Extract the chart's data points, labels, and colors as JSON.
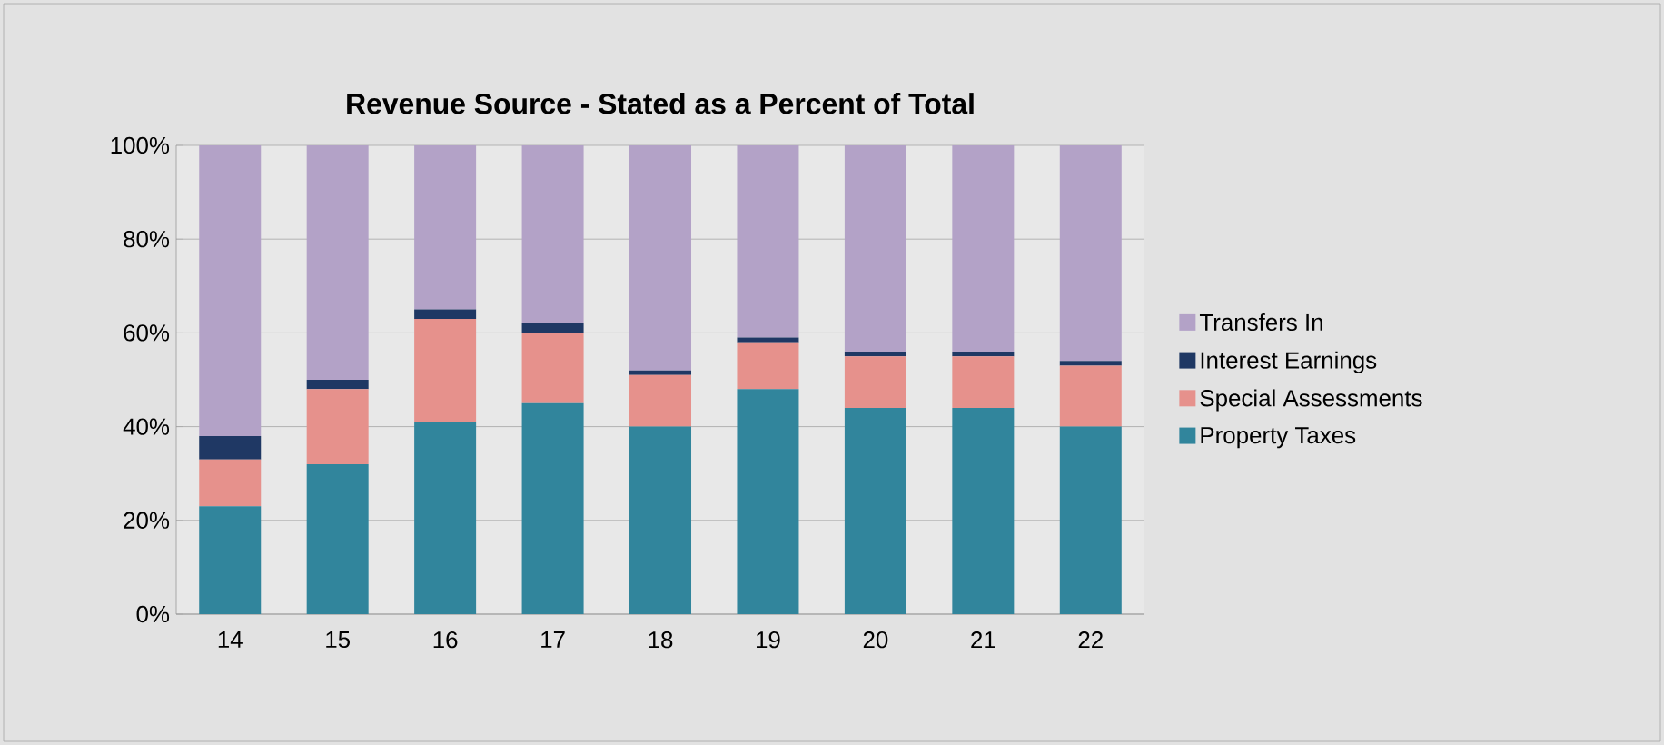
{
  "chart_data": {
    "type": "bar",
    "title": "Revenue Source - Stated as a Percent of Total",
    "categories": [
      "14",
      "15",
      "16",
      "17",
      "18",
      "19",
      "20",
      "21",
      "22"
    ],
    "stacked": true,
    "series": [
      {
        "name": "Property Taxes",
        "color": "#31859c",
        "values": [
          23,
          32,
          41,
          45,
          40,
          48,
          44,
          44,
          40
        ]
      },
      {
        "name": "Special Assessments",
        "color": "#e6918c",
        "values": [
          10,
          16,
          22,
          15,
          11,
          10,
          11,
          11,
          13
        ]
      },
      {
        "name": "Interest Earnings",
        "color": "#1f3864",
        "values": [
          5,
          2,
          2,
          2,
          1,
          1,
          1,
          1,
          1
        ]
      },
      {
        "name": "Transfers In",
        "color": "#b3a2c7",
        "values": [
          62,
          50,
          35,
          38,
          48,
          41,
          44,
          44,
          46
        ]
      }
    ],
    "ylim": [
      0,
      100
    ],
    "yticks": [
      {
        "value": 0,
        "label": "0%"
      },
      {
        "value": 20,
        "label": "20%"
      },
      {
        "value": 40,
        "label": "40%"
      },
      {
        "value": 60,
        "label": "60%"
      },
      {
        "value": 80,
        "label": "80%"
      },
      {
        "value": 100,
        "label": "100%"
      }
    ],
    "grid": "y",
    "legend": "right"
  }
}
